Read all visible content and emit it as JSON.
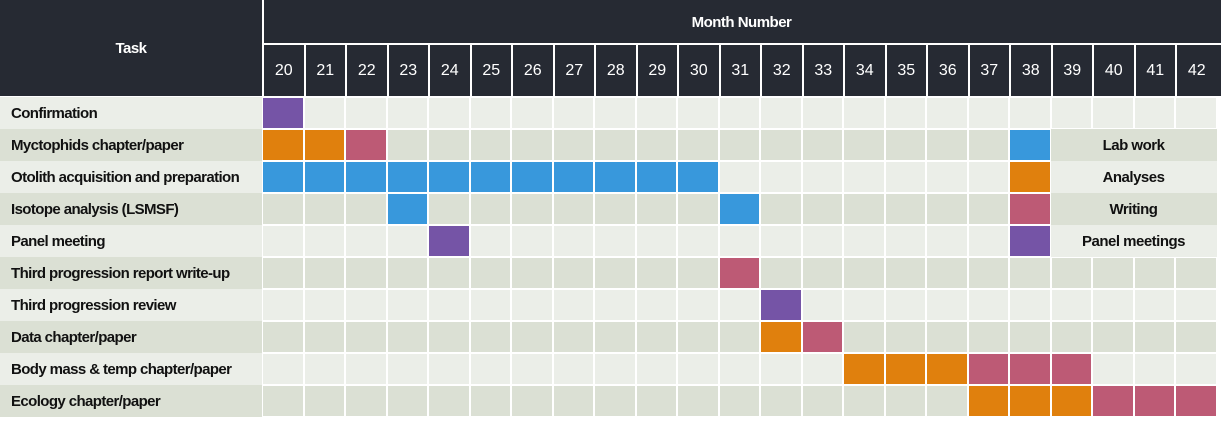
{
  "header": {
    "task_label": "Task",
    "months_label": "Month Number"
  },
  "months": [
    "20",
    "21",
    "22",
    "23",
    "24",
    "25",
    "26",
    "27",
    "28",
    "29",
    "30",
    "31",
    "32",
    "33",
    "34",
    "35",
    "36",
    "37",
    "38",
    "39",
    "40",
    "41",
    "42"
  ],
  "colors": {
    "header_bg": "#262a33",
    "row_odd": "#ebeee8",
    "row_even": "#dbe0d4",
    "purple": "#7554a6",
    "orange": "#e0800d",
    "pink": "#bd5a75",
    "blue": "#3898dc"
  },
  "tasks": [
    {
      "name": "Confirmation",
      "bars": [
        {
          "start": 20,
          "end": 20,
          "color": "purple"
        }
      ]
    },
    {
      "name": "Myctophids chapter/paper",
      "bars": [
        {
          "start": 20,
          "end": 21,
          "color": "orange"
        },
        {
          "start": 22,
          "end": 22,
          "color": "pink"
        }
      ]
    },
    {
      "name": "Otolith acquisition and preparation",
      "bars": [
        {
          "start": 20,
          "end": 30,
          "color": "blue"
        }
      ]
    },
    {
      "name": "Isotope analysis (LSMSF)",
      "bars": [
        {
          "start": 23,
          "end": 23,
          "color": "blue"
        },
        {
          "start": 31,
          "end": 31,
          "color": "blue"
        }
      ]
    },
    {
      "name": "Panel meeting",
      "bars": [
        {
          "start": 24,
          "end": 24,
          "color": "purple"
        }
      ]
    },
    {
      "name": "Third progression report write-up",
      "bars": [
        {
          "start": 31,
          "end": 31,
          "color": "pink"
        }
      ]
    },
    {
      "name": "Third progression review",
      "bars": [
        {
          "start": 32,
          "end": 32,
          "color": "purple"
        }
      ]
    },
    {
      "name": "Data chapter/paper",
      "bars": [
        {
          "start": 32,
          "end": 32,
          "color": "orange"
        },
        {
          "start": 33,
          "end": 33,
          "color": "pink"
        }
      ]
    },
    {
      "name": "Body mass & temp chapter/paper",
      "bars": [
        {
          "start": 34,
          "end": 36,
          "color": "orange"
        },
        {
          "start": 37,
          "end": 39,
          "color": "pink"
        }
      ]
    },
    {
      "name": "Ecology chapter/paper",
      "bars": [
        {
          "start": 37,
          "end": 39,
          "color": "orange"
        },
        {
          "start": 40,
          "end": 42,
          "color": "pink"
        }
      ]
    }
  ],
  "legend": [
    {
      "label": "Lab work",
      "color": "blue"
    },
    {
      "label": "Analyses",
      "color": "orange"
    },
    {
      "label": "Writing",
      "color": "pink"
    },
    {
      "label": "Panel meetings",
      "color": "purple"
    }
  ]
}
